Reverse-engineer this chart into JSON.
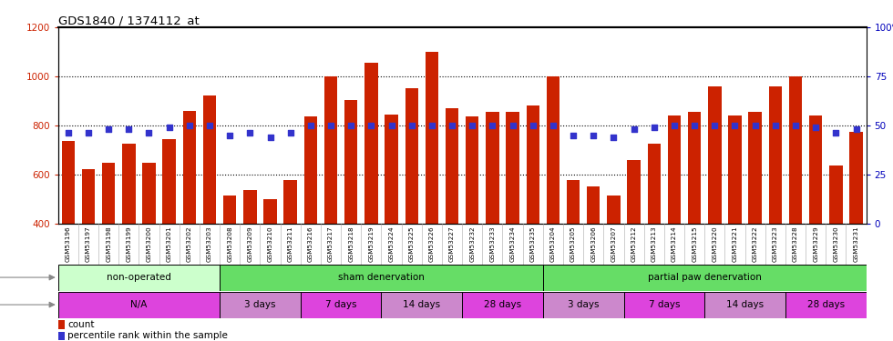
{
  "title": "GDS1840 / 1374112_at",
  "ylim_left": [
    400,
    1200
  ],
  "ylim_right": [
    0,
    100
  ],
  "yticks_left": [
    400,
    600,
    800,
    1000,
    1200
  ],
  "yticks_right": [
    0,
    25,
    50,
    75,
    100
  ],
  "bar_color": "#cc2200",
  "dot_color": "#3333cc",
  "samples": [
    "GSM53196",
    "GSM53197",
    "GSM53198",
    "GSM53199",
    "GSM53200",
    "GSM53201",
    "GSM53202",
    "GSM53203",
    "GSM53208",
    "GSM53209",
    "GSM53210",
    "GSM53211",
    "GSM53216",
    "GSM53217",
    "GSM53218",
    "GSM53219",
    "GSM53224",
    "GSM53225",
    "GSM53226",
    "GSM53227",
    "GSM53232",
    "GSM53233",
    "GSM53234",
    "GSM53235",
    "GSM53204",
    "GSM53205",
    "GSM53206",
    "GSM53207",
    "GSM53212",
    "GSM53213",
    "GSM53214",
    "GSM53215",
    "GSM53220",
    "GSM53221",
    "GSM53222",
    "GSM53223",
    "GSM53228",
    "GSM53229",
    "GSM53230",
    "GSM53231"
  ],
  "counts": [
    735,
    620,
    648,
    725,
    648,
    742,
    858,
    920,
    515,
    535,
    500,
    575,
    835,
    1000,
    902,
    1055,
    845,
    950,
    1100,
    870,
    835,
    855,
    855,
    880,
    1000,
    575,
    550,
    515,
    660,
    725,
    840,
    855,
    960,
    840,
    855,
    960,
    1000,
    840,
    635,
    775
  ],
  "percentiles": [
    46,
    46,
    48,
    48,
    46,
    49,
    50,
    50,
    45,
    46,
    44,
    46,
    50,
    50,
    50,
    50,
    50,
    50,
    50,
    50,
    50,
    50,
    50,
    50,
    50,
    45,
    45,
    44,
    48,
    49,
    50,
    50,
    50,
    50,
    50,
    50,
    50,
    49,
    46,
    48
  ],
  "protocol_groups": [
    {
      "label": "non-operated",
      "start": 0,
      "end": 8,
      "color": "#ccffcc"
    },
    {
      "label": "sham denervation",
      "start": 8,
      "end": 24,
      "color": "#66dd66"
    },
    {
      "label": "partial paw denervation",
      "start": 24,
      "end": 40,
      "color": "#66dd66"
    }
  ],
  "time_groups": [
    {
      "label": "N/A",
      "start": 0,
      "end": 8,
      "color": "#dd44dd"
    },
    {
      "label": "3 days",
      "start": 8,
      "end": 12,
      "color": "#cc88cc"
    },
    {
      "label": "7 days",
      "start": 12,
      "end": 16,
      "color": "#dd44dd"
    },
    {
      "label": "14 days",
      "start": 16,
      "end": 20,
      "color": "#cc88cc"
    },
    {
      "label": "28 days",
      "start": 20,
      "end": 24,
      "color": "#dd44dd"
    },
    {
      "label": "3 days",
      "start": 24,
      "end": 28,
      "color": "#cc88cc"
    },
    {
      "label": "7 days",
      "start": 28,
      "end": 32,
      "color": "#dd44dd"
    },
    {
      "label": "14 days",
      "start": 32,
      "end": 36,
      "color": "#cc88cc"
    },
    {
      "label": "28 days",
      "start": 36,
      "end": 40,
      "color": "#dd44dd"
    }
  ],
  "bg_color": "#ffffff",
  "tick_label_color_left": "#cc2200",
  "tick_label_color_right": "#0000bb",
  "xtick_bg_color": "#dddddd",
  "plot_bg_color": "#ffffff"
}
